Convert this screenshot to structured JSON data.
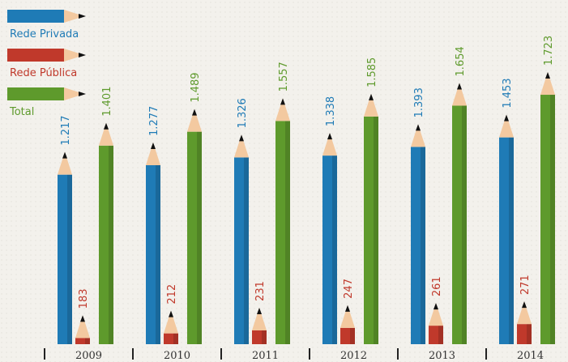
{
  "chart_data": {
    "type": "bar",
    "categories": [
      "2009",
      "2010",
      "2011",
      "2012",
      "2013",
      "2014"
    ],
    "series": [
      {
        "name": "Rede Privada",
        "color": "#1f7bb6",
        "values": [
          1217,
          1277,
          1326,
          1338,
          1393,
          1453
        ],
        "value_labels": [
          "1.217",
          "1.277",
          "1.326",
          "1.338",
          "1.393",
          "1.453"
        ]
      },
      {
        "name": "Rede Pública",
        "color": "#c0392b",
        "values": [
          183,
          212,
          231,
          247,
          261,
          271
        ]
      },
      {
        "name": "Total",
        "color": "#5e9a2c",
        "values": [
          1401,
          1489,
          1557,
          1585,
          1654,
          1723
        ],
        "value_labels": [
          "1.401",
          "1.489",
          "1.557",
          "1.585",
          "1.654",
          "1.723"
        ]
      }
    ]
  }
}
